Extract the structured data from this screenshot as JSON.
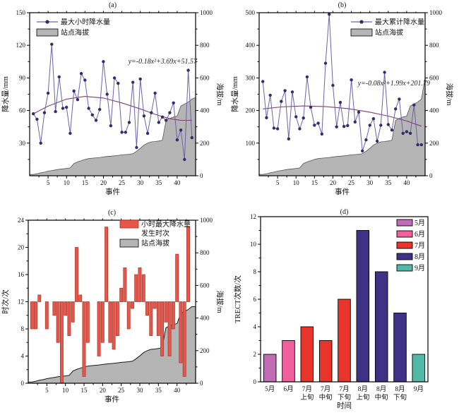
{
  "figure": {
    "background": "#ffffff"
  },
  "palette": {
    "frame": "#000000",
    "line": "#6b63a9",
    "marker": "#342c6e",
    "trend": "#7e4070",
    "elev_fill": "#b5b5b5",
    "elev_edge_ab": "#555555",
    "elev_edge_c": "#1a1a1a",
    "bar_fill": "#e4584c",
    "bar_edge": "#b03228",
    "text": "#111111"
  },
  "chart_data": [
    {
      "panel": "a",
      "type": "line",
      "title": "(a)",
      "xlabel": "事件",
      "ylabel_left": "降水量/mm",
      "ylabel_right": "海拔/m",
      "equation": "y=-0.18x²+3.69x+51.57",
      "legend": [
        {
          "label": "最大小时降水量",
          "swatch": "line"
        },
        {
          "label": "站点海拔",
          "swatch": "area"
        }
      ],
      "xlim": [
        0,
        45
      ],
      "xticks": [
        5,
        10,
        15,
        20,
        25,
        30,
        35,
        40
      ],
      "ylim_left": [
        0,
        150
      ],
      "yticks_left": [
        30,
        60,
        90,
        120,
        150
      ],
      "ylim_right": [
        0,
        1000
      ],
      "yticks_right": [
        0,
        200,
        400,
        600,
        800,
        1000
      ],
      "values": [
        57,
        52,
        30,
        58,
        76,
        121,
        59,
        91,
        62,
        63,
        39,
        78,
        70,
        94,
        88,
        62,
        56,
        51,
        61,
        105,
        75,
        46,
        90,
        85,
        40,
        40,
        49,
        86,
        26,
        89,
        55,
        39,
        58,
        76,
        49,
        54,
        51,
        58,
        67,
        33,
        42,
        15,
        97,
        35
      ],
      "elevation": [
        8,
        12,
        18,
        22,
        28,
        32,
        36,
        40,
        42,
        45,
        48,
        75,
        85,
        92,
        100,
        105,
        108,
        110,
        112,
        115,
        118,
        120,
        122,
        125,
        128,
        130,
        132,
        135,
        150,
        168,
        188,
        200,
        208,
        210,
        213,
        218,
        340,
        352,
        360,
        366,
        428,
        440,
        452,
        470
      ],
      "elevation_edge": 480,
      "trend": [
        [
          1,
          57
        ],
        [
          5,
          64
        ],
        [
          10,
          70.5
        ],
        [
          15,
          73
        ],
        [
          20,
          71.5
        ],
        [
          25,
          67
        ],
        [
          30,
          61.5
        ],
        [
          34,
          56.5
        ],
        [
          38,
          52.5
        ],
        [
          41,
          51
        ],
        [
          44,
          51
        ]
      ]
    },
    {
      "panel": "b",
      "type": "line",
      "title": "(b)",
      "xlabel": "事件",
      "ylabel_left": "降水量/mm",
      "ylabel_right": "海拔/m",
      "equation": "y=-0.08x²+1.99x+201.79",
      "legend": [
        {
          "label": "最大累计降水量",
          "swatch": "line"
        },
        {
          "label": "站点海拔",
          "swatch": "area"
        }
      ],
      "xlim": [
        0,
        45
      ],
      "xticks": [
        5,
        10,
        15,
        20,
        25,
        30,
        35,
        40
      ],
      "ylim_left": [
        0,
        500
      ],
      "yticks_left": [
        100,
        200,
        300,
        400,
        500
      ],
      "ylim_right": [
        0,
        1000
      ],
      "yticks_right": [
        0,
        200,
        400,
        600,
        800,
        1000
      ],
      "values": [
        289,
        178,
        247,
        146,
        144,
        228,
        261,
        113,
        257,
        181,
        144,
        177,
        303,
        210,
        155,
        161,
        128,
        345,
        495,
        277,
        150,
        225,
        151,
        154,
        294,
        165,
        195,
        76,
        110,
        155,
        175,
        106,
        155,
        317,
        157,
        140,
        205,
        235,
        130,
        135,
        130,
        217,
        95,
        95
      ],
      "elevation": [
        8,
        12,
        18,
        22,
        28,
        32,
        36,
        40,
        42,
        45,
        48,
        75,
        85,
        92,
        100,
        105,
        108,
        110,
        112,
        115,
        118,
        120,
        122,
        125,
        128,
        130,
        132,
        135,
        150,
        168,
        188,
        200,
        208,
        210,
        213,
        218,
        340,
        352,
        360,
        366,
        428,
        440,
        452,
        470
      ],
      "elevation_edge": 600,
      "trend": [
        [
          1,
          205
        ],
        [
          6,
          211
        ],
        [
          12,
          214
        ],
        [
          18,
          212
        ],
        [
          24,
          206
        ],
        [
          30,
          195
        ],
        [
          35,
          183
        ],
        [
          40,
          168
        ],
        [
          44,
          152
        ]
      ]
    },
    {
      "panel": "c",
      "type": "baseline-bar",
      "title": "(c)",
      "xlabel": "事件",
      "ylabel_left": "时次/次",
      "ylabel_right": "海拔/m",
      "legend": [
        {
          "label": "小时最大降水量",
          "label2": "发生时次",
          "swatch": "bar"
        },
        {
          "label": "站点海拔",
          "swatch": "area"
        }
      ],
      "baseline": 12,
      "xlim": [
        0,
        45
      ],
      "xticks": [
        5,
        10,
        15,
        20,
        25,
        30,
        35,
        40
      ],
      "ylim_left": [
        0,
        24
      ],
      "yticks_left": [
        0,
        4,
        8,
        12,
        16,
        20,
        24
      ],
      "ylim_right": [
        0,
        1000
      ],
      "yticks_right": [
        0,
        200,
        400,
        600,
        800,
        1000
      ],
      "values": [
        8,
        8,
        13,
        12,
        8,
        12,
        10,
        6,
        0,
        10,
        7,
        9,
        20,
        13,
        1,
        6,
        12,
        12,
        4,
        6,
        23,
        6,
        5,
        7,
        14,
        17,
        8,
        11,
        16,
        17,
        16,
        10,
        7,
        11,
        7,
        4,
        9,
        4,
        8,
        19,
        3,
        1,
        23,
        12
      ],
      "elevation": [
        8,
        12,
        18,
        22,
        28,
        32,
        36,
        40,
        42,
        45,
        48,
        75,
        85,
        92,
        100,
        105,
        108,
        110,
        112,
        115,
        118,
        120,
        122,
        125,
        128,
        130,
        132,
        135,
        150,
        168,
        188,
        200,
        208,
        210,
        213,
        218,
        340,
        352,
        360,
        366,
        428,
        440,
        452,
        470
      ],
      "elevation_edge": 470
    },
    {
      "panel": "d",
      "type": "bar",
      "title": "(d)",
      "xlabel": "时间",
      "ylabel_left": "TRECT次数/次",
      "ylim_left": [
        0,
        12
      ],
      "yticks_left": [
        0,
        2,
        4,
        6,
        8,
        10,
        12
      ],
      "categories": [
        [
          "5月",
          ""
        ],
        [
          "6月",
          ""
        ],
        [
          "7月",
          "上旬"
        ],
        [
          "7月",
          "中旬"
        ],
        [
          "7月",
          "下旬"
        ],
        [
          "8月",
          "上旬"
        ],
        [
          "8月",
          "中旬"
        ],
        [
          "8月",
          "下旬"
        ],
        [
          "9月",
          ""
        ]
      ],
      "values": [
        2,
        3,
        4,
        3,
        6,
        11,
        8,
        5,
        2
      ],
      "color_index": [
        0,
        1,
        2,
        2,
        2,
        3,
        3,
        3,
        4
      ],
      "legend": [
        {
          "label": "5月",
          "color": "#c06cb4"
        },
        {
          "label": "6月",
          "color": "#f0609f"
        },
        {
          "label": "7月",
          "color": "#e8342a"
        },
        {
          "label": "8月",
          "color": "#3f3286"
        },
        {
          "label": "9月",
          "color": "#52b9a9"
        }
      ]
    }
  ]
}
